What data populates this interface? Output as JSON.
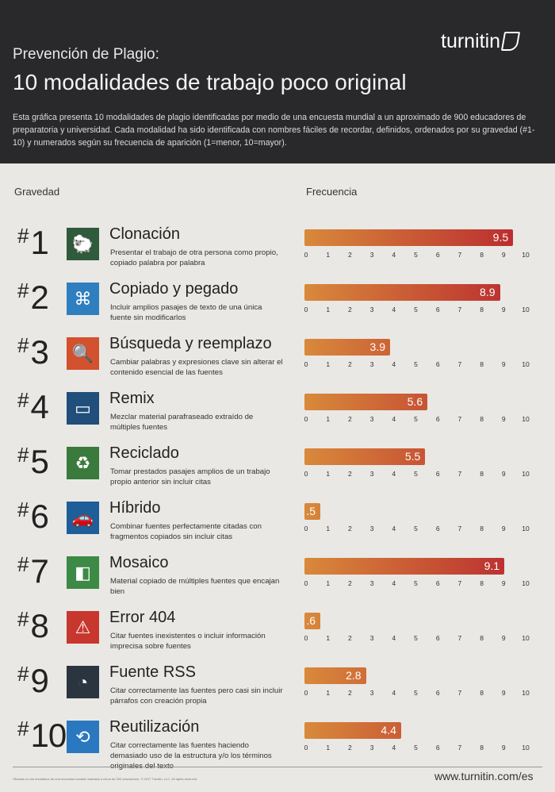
{
  "header": {
    "subtitle": "Prevención de Plagio:",
    "title": "10 modalidades de trabajo poco original",
    "description": "Esta gráfica presenta 10 modalidades de plagio identificadas por medio de una encuesta mundial a un aproximado de 900 educadores de preparatoria y universidad. Cada modalidad ha sido identificada con nombres fáciles de recordar, definidos, ordenados por su gravedad (#1-10) y numerados según su frecuencia de aparición (1=menor, 10=mayor).",
    "logo": "turnitin"
  },
  "columns": {
    "severity": "Gravedad",
    "frequency": "Frecuencia"
  },
  "chart_data": {
    "type": "bar",
    "title": "10 modalidades de trabajo poco original",
    "xlabel": "Frecuencia",
    "ylabel": "Gravedad",
    "xlim": [
      0,
      10
    ],
    "ticks": [
      "0",
      "1",
      "2",
      "3",
      "4",
      "5",
      "6",
      "7",
      "8",
      "9",
      "10"
    ],
    "categories": [
      "Clonación",
      "Copiado y pegado",
      "Búsqueda y reemplazo",
      "Remix",
      "Reciclado",
      "Híbrido",
      "Mosaico",
      "Error 404",
      "Fuente RSS",
      "Reutilización"
    ],
    "values": [
      9.5,
      8.9,
      3.9,
      5.6,
      5.5,
      0.5,
      9.1,
      0.6,
      2.8,
      4.4
    ],
    "value_labels": [
      "9.5",
      "8.9",
      "3.9",
      "5.6",
      "5.5",
      ".5",
      "9.1",
      ".6",
      "2.8",
      "4.4"
    ]
  },
  "items": [
    {
      "rank": "1",
      "name": "Clonación",
      "definition": "Presentar el trabajo de otra persona como propio, copiado palabra por palabra",
      "icon": "sheep-icon",
      "color": "#2f5a3c",
      "glyph": "🐑"
    },
    {
      "rank": "2",
      "name": "Copiado y pegado",
      "definition": "Incluir amplios pasajes de texto de una única fuente sin modificarlos",
      "icon": "ctrl-c-icon",
      "color": "#2f7fc0",
      "glyph": "⌘"
    },
    {
      "rank": "3",
      "name": "Búsqueda y reemplazo",
      "definition": "Cambiar palabras y expresiones clave sin alterar el contenido esencial de las fuentes",
      "icon": "magnifier-icon",
      "color": "#d2512e",
      "glyph": "🔍"
    },
    {
      "rank": "4",
      "name": "Remix",
      "definition": "Mezclar material parafraseado extraído de múltiples fuentes",
      "icon": "cassette-icon",
      "color": "#1f4f7a",
      "glyph": "▭"
    },
    {
      "rank": "5",
      "name": "Reciclado",
      "definition": "Tomar prestados pasajes amplios de un trabajo propio anterior sin incluir citas",
      "icon": "recycle-icon",
      "color": "#3a7a3c",
      "glyph": "♻"
    },
    {
      "rank": "6",
      "name": "Híbrido",
      "definition": "Combinar fuentes perfectamente citadas con fragmentos copiados sin incluir citas",
      "icon": "car-icon",
      "color": "#1e5f99",
      "glyph": "🚗"
    },
    {
      "rank": "7",
      "name": "Mosaico",
      "definition": "Material copiado de múltiples fuentes que encajan bien",
      "icon": "puzzle-icon",
      "color": "#3c8a45",
      "glyph": "◧"
    },
    {
      "rank": "8",
      "name": "Error 404",
      "definition": "Citar fuentes inexistentes o incluir información imprecisa sobre fuentes",
      "icon": "warning-icon",
      "color": "#c8372e",
      "glyph": "⚠"
    },
    {
      "rank": "9",
      "name": "Fuente RSS",
      "definition": "Citar correctamente las fuentes pero casi sin incluir párrafos con creación propia",
      "icon": "rss-icon",
      "color": "#2b3540",
      "glyph": "◔"
    },
    {
      "rank": "10",
      "name": "Reutilización",
      "definition": "Citar correctamente las fuentes haciendo demasiado uso de la estructura y/o los términos originales del texto",
      "icon": "repeat-icon",
      "color": "#2a78c0",
      "glyph": "⟲"
    }
  ],
  "footer": {
    "note": "*Basado en los resultados de una encuesta mundial realizada a cerca de 900 educadores. © 2017 Turnitin, LLC. All rights reserved.",
    "url": "www.turnitin.com/es"
  }
}
